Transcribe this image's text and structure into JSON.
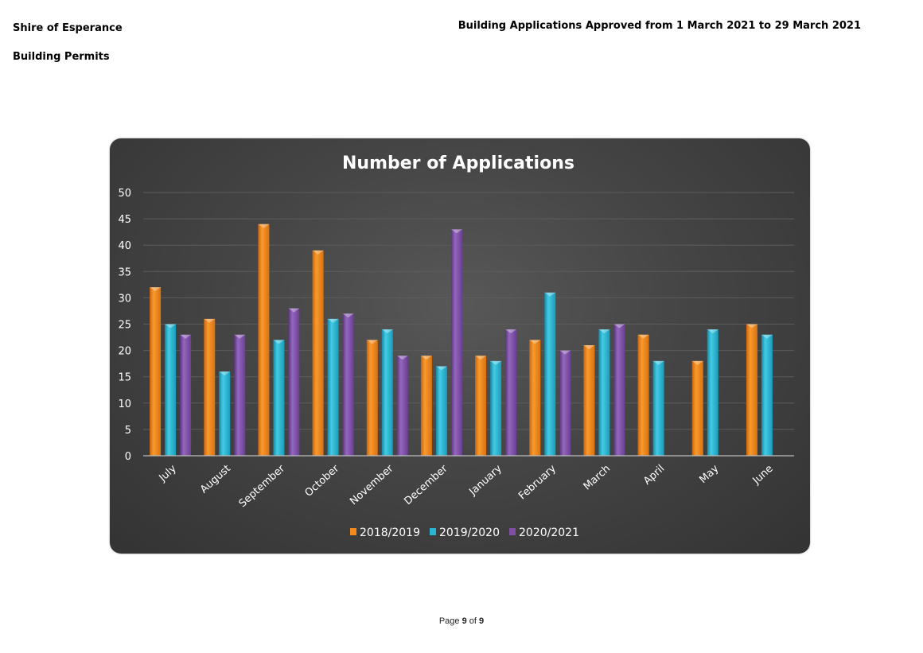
{
  "header": {
    "org_name": "Shire of Esperance",
    "section_name": "Building Permits",
    "report_title": "Building Applications Approved from 1 March 2021 to 29 March 2021"
  },
  "footer": {
    "page_word": "Page",
    "page_current": "9",
    "of_word": "of",
    "page_total": "9"
  },
  "chart_data": {
    "type": "bar",
    "title": "Number of Applications",
    "xlabel": "",
    "ylabel": "",
    "ylim": [
      0,
      50
    ],
    "yticks": [
      0,
      5,
      10,
      15,
      20,
      25,
      30,
      35,
      40,
      45,
      50
    ],
    "categories": [
      "July",
      "August",
      "September",
      "October",
      "November",
      "December",
      "January",
      "February",
      "March",
      "April",
      "May",
      "June"
    ],
    "series": [
      {
        "name": "2018/2019",
        "color": "#F28A1E",
        "values": [
          32,
          26,
          44,
          39,
          22,
          19,
          19,
          22,
          21,
          23,
          18,
          25
        ]
      },
      {
        "name": "2019/2020",
        "color": "#2BB6D3",
        "values": [
          25,
          16,
          22,
          26,
          24,
          17,
          18,
          31,
          24,
          18,
          24,
          23
        ]
      },
      {
        "name": "2020/2021",
        "color": "#7E4FA3",
        "values": [
          23,
          23,
          28,
          27,
          19,
          43,
          24,
          20,
          25,
          null,
          null,
          null
        ]
      }
    ],
    "grid": true,
    "legend_position": "bottom",
    "background": "#404040"
  }
}
